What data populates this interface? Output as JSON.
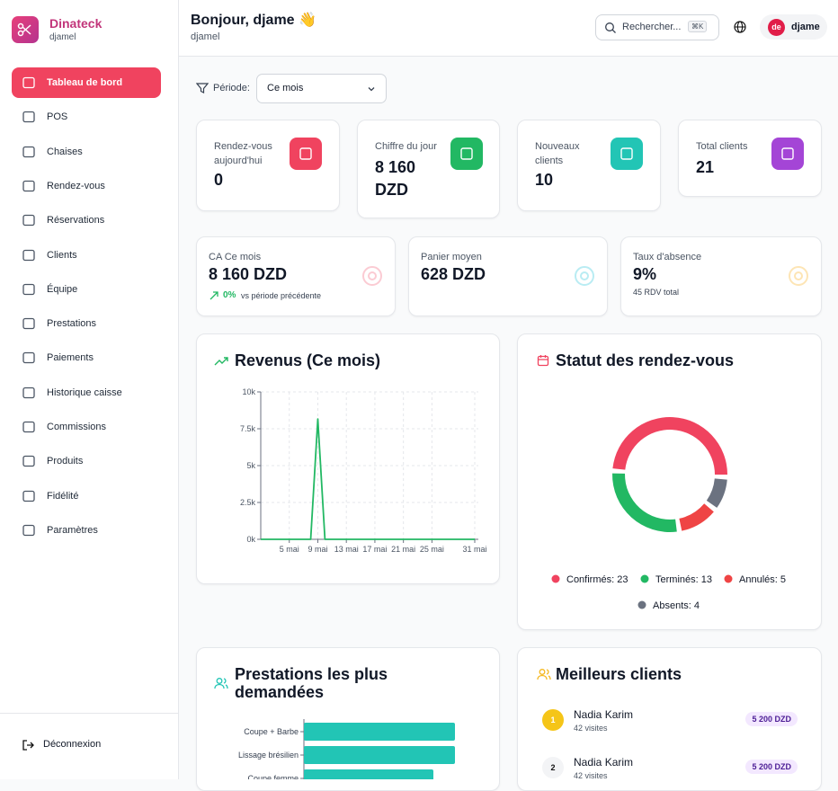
{
  "sidebar": {
    "brand": "Dinateck",
    "user": "djamel",
    "nav": [
      "Tableau de bord",
      "POS",
      "Chaises",
      "Rendez-vous",
      "Réservations",
      "Clients",
      "Équipe",
      "Prestations",
      "Paiements",
      "Historique caisse",
      "Commissions",
      "Produits",
      "Fidélité",
      "Paramètres"
    ],
    "logout": "Déconnexion"
  },
  "header": {
    "greeting": "Bonjour, djame 👋",
    "subtitle": "djamel",
    "search": "Rechercher...",
    "shortcut": "⌘K",
    "avatar": "de",
    "username": "djame"
  },
  "filter": {
    "label": "Période:",
    "value": "Ce mois"
  },
  "stats": [
    {
      "label": "Rendez-vous aujourd'hui",
      "value": "0",
      "color": "#f0435f"
    },
    {
      "label": "Chiffre du jour",
      "value": "8 160 DZD",
      "color": "#22b863"
    },
    {
      "label": "Nouveaux clients",
      "value": "10",
      "color": "#22c5b5"
    },
    {
      "label": "Total clients",
      "value": "21",
      "color": "#a445d6"
    }
  ],
  "kpis": [
    {
      "label": "CA Ce mois",
      "value": "8 160 DZD",
      "change": "0%",
      "note": "vs période précédente"
    },
    {
      "label": "Panier moyen",
      "value": "628 DZD"
    },
    {
      "label": "Taux d'absence",
      "value": "9%",
      "note": "45 RDV total"
    }
  ],
  "chart_data": [
    {
      "type": "line",
      "title": "Revenus (Ce mois)",
      "x": [
        1,
        2,
        3,
        4,
        5,
        6,
        7,
        8,
        9,
        10,
        11,
        12,
        13,
        14,
        15,
        16,
        17,
        18,
        19,
        20,
        21,
        22,
        23,
        24,
        25,
        26,
        27,
        28,
        29,
        30,
        31
      ],
      "series": [
        {
          "color": "#22b863",
          "values": [
            0,
            0,
            0,
            0,
            0,
            0,
            0,
            0,
            8160,
            0,
            0,
            0,
            0,
            0,
            0,
            0,
            0,
            0,
            0,
            0,
            0,
            0,
            0,
            0,
            0,
            0,
            0,
            0,
            0,
            0,
            0
          ]
        }
      ],
      "xlim": [
        1,
        31
      ],
      "xticks": [
        {
          "value": 5,
          "label": "5 mai"
        },
        {
          "value": 9,
          "label": "9 mai"
        },
        {
          "value": 13,
          "label": "13 mai"
        },
        {
          "value": 17,
          "label": "17 mai"
        },
        {
          "value": 21,
          "label": "21 mai"
        },
        {
          "value": 25,
          "label": "25 mai"
        },
        {
          "value": 31,
          "label": "31 mai"
        }
      ],
      "ylim": [
        0,
        10000
      ],
      "yticks": [
        {
          "value": 0,
          "label": "0k"
        },
        {
          "value": 2500,
          "label": "2.5k"
        },
        {
          "value": 5000,
          "label": "5k"
        },
        {
          "value": 7500,
          "label": "7.5k"
        },
        {
          "value": 10000,
          "label": "10k"
        }
      ],
      "grid": true
    },
    {
      "type": "pie",
      "title": "Statut des rendez-vous",
      "values": [
        23,
        13,
        5,
        4
      ],
      "value_labels": [
        "Confirmés: 23",
        "Terminés: 13",
        "Annulés: 5",
        "Absents: 4"
      ],
      "colors": [
        "#f0435f",
        "#22b863",
        "#ef4444",
        "#6b7280"
      ],
      "donut": true
    },
    {
      "type": "hbar",
      "title": "Prestations les plus demandées",
      "categories": [
        "Coupe + Barbe",
        "Lissage brésilien",
        "Coupe femme"
      ],
      "values": [
        7,
        7,
        6
      ],
      "color": "#22c5b5",
      "xlim": [
        0,
        8
      ]
    }
  ],
  "top_clients": {
    "title": "Meilleurs clients",
    "rows": [
      {
        "rank": "1",
        "name": "Nadia Karim",
        "visits": "42 visites",
        "amount": "5 200 DZD"
      },
      {
        "rank": "2",
        "name": "Nadia Karim",
        "visits": "42 visites",
        "amount": "5 200 DZD"
      }
    ]
  }
}
